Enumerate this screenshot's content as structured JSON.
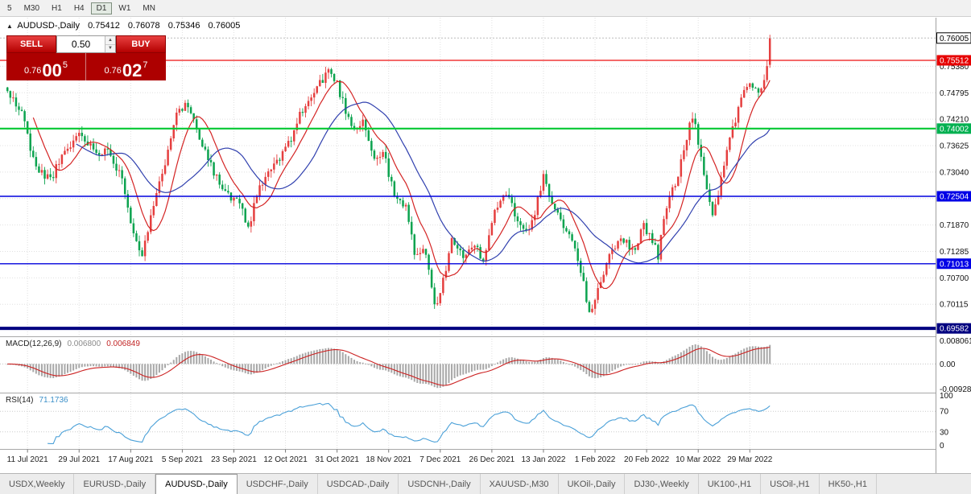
{
  "toolbar": {
    "timeframes": [
      {
        "label": "5",
        "active": false
      },
      {
        "label": "M30",
        "active": false
      },
      {
        "label": "H1",
        "active": false
      },
      {
        "label": "H4",
        "active": false
      },
      {
        "label": "D1",
        "active": true
      },
      {
        "label": "W1",
        "active": false
      },
      {
        "label": "MN",
        "active": false
      }
    ]
  },
  "header": {
    "symbol_title": "AUDUSD-,Daily",
    "open": "0.75412",
    "high": "0.76078",
    "low": "0.75346",
    "close": "0.76005"
  },
  "trade": {
    "sell_label": "SELL",
    "buy_label": "BUY",
    "volume": "0.50",
    "bid": {
      "prefix": "0.76",
      "big": "00",
      "sup": "5"
    },
    "ask": {
      "prefix": "0.76",
      "big": "02",
      "sup": "7"
    }
  },
  "macd": {
    "label": "MACD(12,26,9)",
    "value": "0.006800",
    "signal": "0.006849",
    "axis": {
      "top": "0.008061",
      "zero": "0.00",
      "bottom": "-0.00928"
    },
    "range": {
      "max": 0.008061,
      "min": -0.00928
    }
  },
  "rsi": {
    "label": "RSI(14)",
    "value": "71.1736",
    "axis": [
      "100",
      "70",
      "30",
      "0"
    ],
    "levels": [
      70,
      30
    ]
  },
  "tabs": [
    {
      "label": "USDX,Weekly",
      "active": false
    },
    {
      "label": "EURUSD-,Daily",
      "active": false
    },
    {
      "label": "AUDUSD-,Daily",
      "active": true
    },
    {
      "label": "USDCHF-,Daily",
      "active": false
    },
    {
      "label": "USDCAD-,Daily",
      "active": false
    },
    {
      "label": "USDCNH-,Daily",
      "active": false
    },
    {
      "label": "XAUUSD-,M30",
      "active": false
    },
    {
      "label": "UKOil-,Daily",
      "active": false
    },
    {
      "label": "DJ30-,Weekly",
      "active": false
    },
    {
      "label": "UK100-,H1",
      "active": false
    },
    {
      "label": "USOil-,H1",
      "active": false
    },
    {
      "label": "HK50-,H1",
      "active": false
    }
  ],
  "chart_data": {
    "type": "candlestick",
    "symbol": "AUDUSD-",
    "timeframe": "Daily",
    "noise_seed": 11,
    "bar_count": 267,
    "price_axis": {
      "min": 0.69407,
      "max": 0.76455,
      "gridline_labels": [
        "0.75380",
        "0.74795",
        "0.74210",
        "0.73625",
        "0.73040",
        "0.72455",
        "0.71870",
        "0.71285",
        "0.70700",
        "0.70115"
      ]
    },
    "badges": [
      {
        "text": "0.76005",
        "price": 0.76005,
        "bg": "#ffffff",
        "fg": "#000000",
        "border": "#000000"
      },
      {
        "text": "0.75512",
        "price": 0.75512,
        "bg": "#e60000",
        "fg": "#ffffff",
        "border": "none"
      },
      {
        "text": "0.74002",
        "price": 0.74002,
        "bg": "#00b050",
        "fg": "#ffffff",
        "border": "none"
      },
      {
        "text": "0.72504",
        "price": 0.72504,
        "bg": "#0000e6",
        "fg": "#ffffff",
        "border": "none"
      },
      {
        "text": "0.71013",
        "price": 0.71013,
        "bg": "#0000e6",
        "fg": "#ffffff",
        "border": "none"
      },
      {
        "text": "0.69582",
        "price": 0.69582,
        "bg": "#000080",
        "fg": "#ffffff",
        "border": "none"
      }
    ],
    "hlines": [
      {
        "price": 0.75512,
        "color": "#ee1111",
        "width": 1.2
      },
      {
        "price": 0.74002,
        "color": "#00c832",
        "width": 2.2
      },
      {
        "price": 0.72504,
        "color": "#0000dd",
        "width": 1.4
      },
      {
        "price": 0.71013,
        "color": "#0000dd",
        "width": 1.4
      },
      {
        "price": 0.69582,
        "color": "#000080",
        "width": 4
      }
    ],
    "bid_line": {
      "price": 0.76005,
      "color": "#bbbbbb"
    },
    "last_bar": {
      "o": 0.75412,
      "h": 0.76078,
      "l": 0.75346,
      "c": 0.76005
    },
    "close_anchors": [
      [
        0,
        0.748
      ],
      [
        5,
        0.7435
      ],
      [
        10,
        0.731
      ],
      [
        15,
        0.729
      ],
      [
        20,
        0.7345
      ],
      [
        25,
        0.739
      ],
      [
        30,
        0.7355
      ],
      [
        36,
        0.7345
      ],
      [
        40,
        0.729
      ],
      [
        44,
        0.717
      ],
      [
        47,
        0.7125
      ],
      [
        50,
        0.72
      ],
      [
        54,
        0.73
      ],
      [
        59,
        0.7445
      ],
      [
        63,
        0.745
      ],
      [
        68,
        0.737
      ],
      [
        73,
        0.729
      ],
      [
        77,
        0.725
      ],
      [
        81,
        0.723
      ],
      [
        84,
        0.718
      ],
      [
        88,
        0.727
      ],
      [
        93,
        0.732
      ],
      [
        97,
        0.735
      ],
      [
        102,
        0.743
      ],
      [
        107,
        0.748
      ],
      [
        112,
        0.753
      ],
      [
        115,
        0.75
      ],
      [
        118,
        0.744
      ],
      [
        121,
        0.74
      ],
      [
        124,
        0.742
      ],
      [
        128,
        0.733
      ],
      [
        131,
        0.735
      ],
      [
        135,
        0.725
      ],
      [
        139,
        0.7225
      ],
      [
        142,
        0.713
      ],
      [
        146,
        0.7125
      ],
      [
        149,
        0.7005
      ],
      [
        152,
        0.706
      ],
      [
        155,
        0.716
      ],
      [
        159,
        0.711
      ],
      [
        163,
        0.714
      ],
      [
        166,
        0.711
      ],
      [
        170,
        0.722
      ],
      [
        174,
        0.726
      ],
      [
        178,
        0.72
      ],
      [
        182,
        0.717
      ],
      [
        187,
        0.729
      ],
      [
        191,
        0.7215
      ],
      [
        195,
        0.718
      ],
      [
        199,
        0.7115
      ],
      [
        203,
        0.699
      ],
      [
        207,
        0.7065
      ],
      [
        211,
        0.714
      ],
      [
        215,
        0.715
      ],
      [
        219,
        0.7135
      ],
      [
        222,
        0.719
      ],
      [
        225,
        0.715
      ],
      [
        227,
        0.712
      ],
      [
        230,
        0.723
      ],
      [
        234,
        0.73
      ],
      [
        239,
        0.743
      ],
      [
        242,
        0.734
      ],
      [
        246,
        0.72
      ],
      [
        250,
        0.732
      ],
      [
        254,
        0.742
      ],
      [
        258,
        0.75
      ],
      [
        261,
        0.748
      ],
      [
        264,
        0.75
      ],
      [
        265,
        0.7541
      ],
      [
        266,
        0.76005
      ]
    ],
    "date_ticks": [
      {
        "label": "11 Jul 2021",
        "bar": 7
      },
      {
        "label": "29 Jul 2021",
        "bar": 25
      },
      {
        "label": "17 Aug 2021",
        "bar": 43
      },
      {
        "label": "5 Sep 2021",
        "bar": 61
      },
      {
        "label": "23 Sep 2021",
        "bar": 79
      },
      {
        "label": "12 Oct 2021",
        "bar": 97
      },
      {
        "label": "31 Oct 2021",
        "bar": 115
      },
      {
        "label": "18 Nov 2021",
        "bar": 133
      },
      {
        "label": "7 Dec 2021",
        "bar": 151
      },
      {
        "label": "26 Dec 2021",
        "bar": 169
      },
      {
        "label": "13 Jan 2022",
        "bar": 187
      },
      {
        "label": "1 Feb 2022",
        "bar": 205
      },
      {
        "label": "20 Feb 2022",
        "bar": 223
      },
      {
        "label": "10 Mar 2022",
        "bar": 241
      },
      {
        "label": "29 Mar 2022",
        "bar": 259
      }
    ],
    "ma_fast_period": 10,
    "ma_slow_period": 25,
    "colors": {
      "bull": "#e53f3f",
      "bear": "#0ca34f",
      "ma_fast": "#d42424",
      "ma_slow": "#2f3fae",
      "grid": "#e0e0e0",
      "macd_hist": "#a8a8a8",
      "macd_signal": "#cc2222",
      "rsi": "#4aa0d8"
    }
  }
}
